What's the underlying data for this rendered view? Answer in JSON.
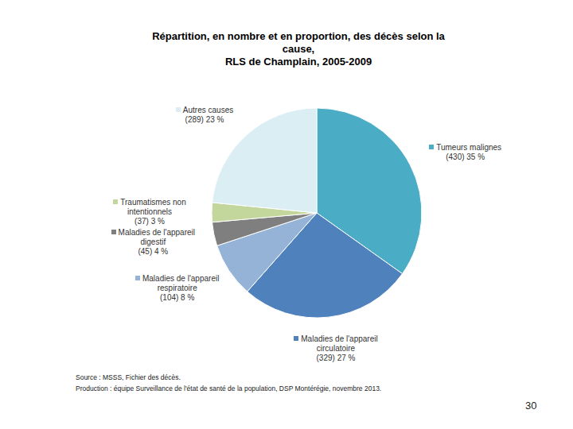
{
  "chart_data": {
    "type": "pie",
    "title": "Répartition, en nombre et en proportion, des décès selon la\ncause,\nRLS de Champlain, 2005-2009",
    "categories": [
      "Tumeurs malignes",
      "Maladies de l'appareil circulatoire",
      "Maladies de l'appareil respiratoire",
      "Maladies de l'appareil digestif",
      "Traumatismes non intentionnels",
      "Autres causes"
    ],
    "values": [
      430,
      329,
      104,
      45,
      37,
      289
    ],
    "value_labels": [
      "(430) 35 %",
      "(329) 27 %",
      "(104) 8 %",
      "(45) 4 %",
      "(37) 3 %",
      "(289) 23 %"
    ],
    "colors": [
      "#4bacc6",
      "#4f81bd",
      "#95b3d7",
      "#7f7f7f",
      "#c3d69b",
      "#daeef3"
    ],
    "data_labels": true,
    "source": [
      "Source : MSSS, Fichier des décès.",
      "Production : équipe Surveillance de l'état de santé de la population, DSP Montérégie, novembre 2013."
    ],
    "page_number": "30"
  }
}
